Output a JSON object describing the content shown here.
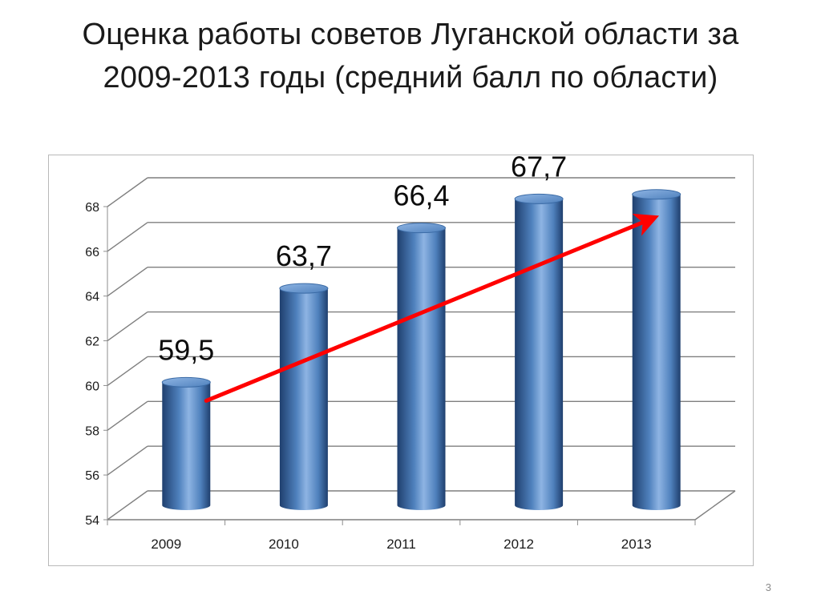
{
  "slide": {
    "title_line1": "Оценка работы советов Луганской области за",
    "title_line2": "2009-2013 годы (средний балл по области)",
    "page_number": "3"
  },
  "colors": {
    "bar_fill": "#4f81bd",
    "bar_light": "#8eb4e3",
    "bar_dark": "#1f3f6e",
    "arrow": "#ff0000",
    "gridline": "#7f7f7f"
  },
  "chart_data": {
    "type": "bar",
    "style": "3d-cylinder",
    "categories": [
      "2009",
      "2010",
      "2011",
      "2012",
      "2013"
    ],
    "values": [
      59.5,
      63.7,
      66.4,
      67.7,
      67.9
    ],
    "data_labels": [
      "59,5",
      "63,7",
      "66,4",
      "67,7",
      ""
    ],
    "ylim": [
      54,
      68
    ],
    "yticks": [
      54,
      56,
      58,
      60,
      62,
      64,
      66,
      68
    ],
    "grid": true,
    "legend": "none",
    "annotations": [
      {
        "type": "trend-arrow",
        "from_category": "2009",
        "to_category": "2013",
        "color": "#ff0000"
      }
    ]
  }
}
